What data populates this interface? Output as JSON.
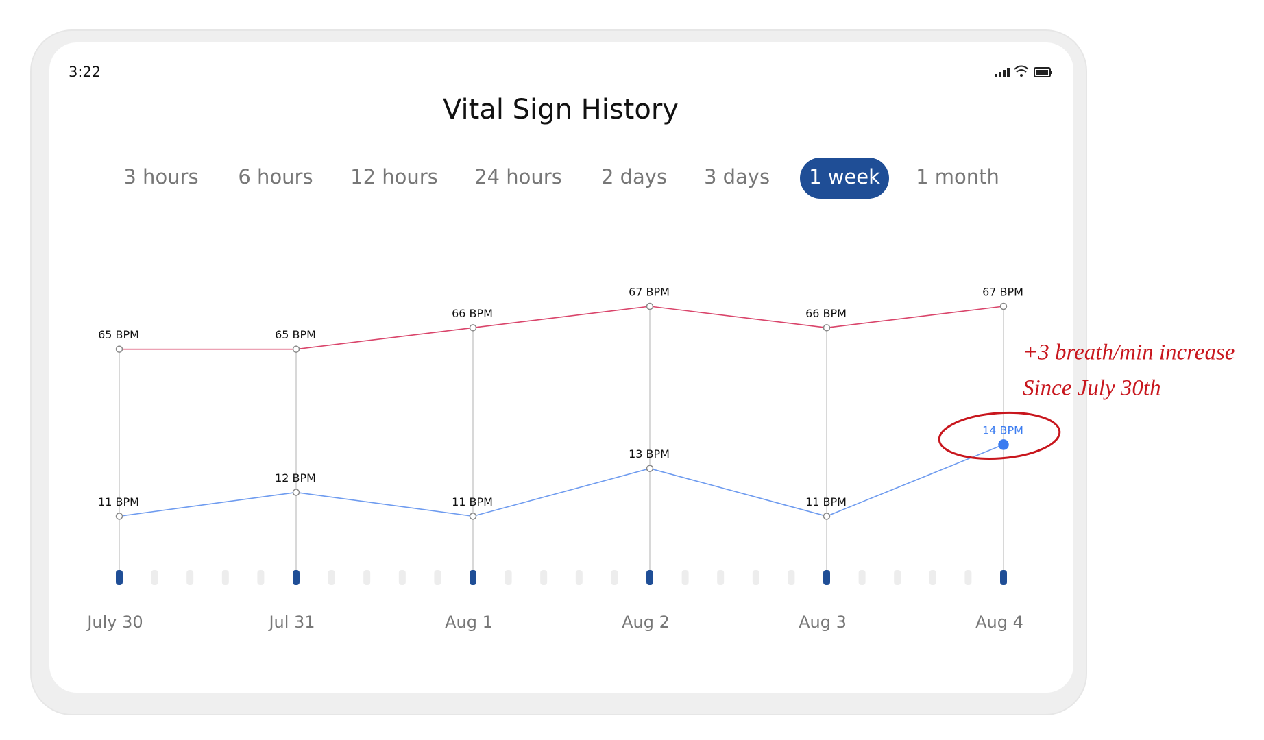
{
  "status": {
    "time": "3:22"
  },
  "title": "Vital Sign History",
  "tabs": [
    "3 hours",
    "6 hours",
    "12 hours",
    "24 hours",
    "2 days",
    "3 days",
    "1 week",
    "1 month"
  ],
  "selected_tab": 6,
  "chart_data": {
    "type": "line",
    "categories": [
      "July 30",
      "Jul 31",
      "Aug 1",
      "Aug 2",
      "Aug 3",
      "Aug 4"
    ],
    "series": [
      {
        "color": "#d9446a",
        "values": [
          65,
          65,
          66,
          67,
          66,
          67
        ],
        "value_labels": [
          "65 BPM",
          "65 BPM",
          "66 BPM",
          "67 BPM",
          "66 BPM",
          "67 BPM"
        ]
      },
      {
        "color": "#6e9bef",
        "axis": "y2",
        "values": [
          11,
          12,
          11,
          13,
          11,
          14
        ],
        "value_labels": [
          "11 BPM",
          "12 BPM",
          "11 BPM",
          "13 BPM",
          "11 BPM",
          "14 BPM"
        ],
        "highlight_color": "#3b7cf0",
        "highlight": 5
      }
    ],
    "ylim": [
      55,
      70
    ],
    "y2lim": [
      9,
      22.5
    ],
    "annotation": [
      "+3 breath/min increase",
      "Since July 30th"
    ],
    "annotation_color": "#c8161d"
  }
}
